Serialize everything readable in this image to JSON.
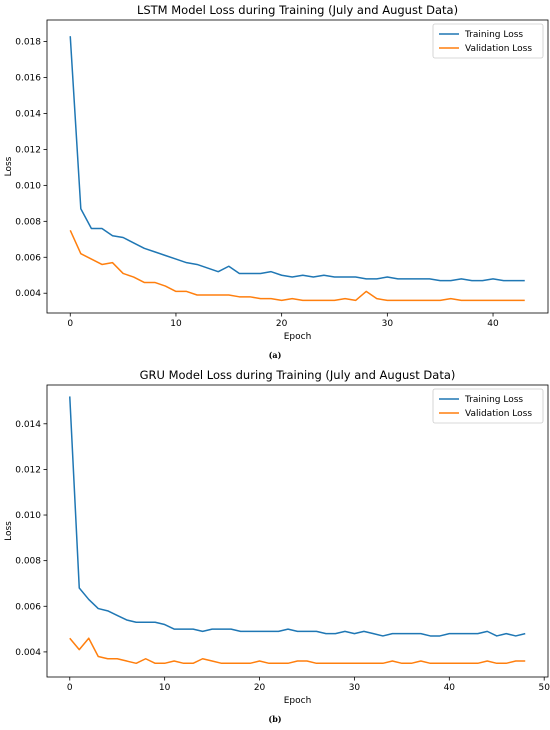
{
  "chart_data": [
    {
      "type": "line",
      "title": "LSTM Model Loss during Training (July and August Data)",
      "xlabel": "Epoch",
      "ylabel": "Loss",
      "caption": "(a)",
      "xlim": [
        -2.2,
        45.2
      ],
      "ylim": [
        0.0029,
        0.0192
      ],
      "xticks": [
        0,
        10,
        20,
        30,
        40
      ],
      "yticks": [
        0.004,
        0.006,
        0.008,
        0.01,
        0.012,
        0.014,
        0.016,
        0.018
      ],
      "ytick_labels": [
        "0.004",
        "0.006",
        "0.008",
        "0.010",
        "0.012",
        "0.014",
        "0.016",
        "0.018"
      ],
      "grid": false,
      "legend": "top-right",
      "series": [
        {
          "name": "Training Loss",
          "color": "#1f77b4",
          "x": [
            0,
            1,
            2,
            3,
            4,
            5,
            6,
            7,
            8,
            9,
            10,
            11,
            12,
            13,
            14,
            15,
            16,
            17,
            18,
            19,
            20,
            21,
            22,
            23,
            24,
            25,
            26,
            27,
            28,
            29,
            30,
            31,
            32,
            33,
            34,
            35,
            36,
            37,
            38,
            39,
            40,
            41,
            42,
            43
          ],
          "values": [
            0.0183,
            0.0087,
            0.0076,
            0.0076,
            0.0072,
            0.0071,
            0.0068,
            0.0065,
            0.0063,
            0.0061,
            0.0059,
            0.0057,
            0.0056,
            0.0054,
            0.0052,
            0.0055,
            0.0051,
            0.0051,
            0.0051,
            0.0052,
            0.005,
            0.0049,
            0.005,
            0.0049,
            0.005,
            0.0049,
            0.0049,
            0.0049,
            0.0048,
            0.0048,
            0.0049,
            0.0048,
            0.0048,
            0.0048,
            0.0048,
            0.0047,
            0.0047,
            0.0048,
            0.0047,
            0.0047,
            0.0048,
            0.0047,
            0.0047,
            0.0047
          ]
        },
        {
          "name": "Validation Loss",
          "color": "#ff7f0e",
          "x": [
            0,
            1,
            2,
            3,
            4,
            5,
            6,
            7,
            8,
            9,
            10,
            11,
            12,
            13,
            14,
            15,
            16,
            17,
            18,
            19,
            20,
            21,
            22,
            23,
            24,
            25,
            26,
            27,
            28,
            29,
            30,
            31,
            32,
            33,
            34,
            35,
            36,
            37,
            38,
            39,
            40,
            41,
            42,
            43
          ],
          "values": [
            0.0075,
            0.0062,
            0.0059,
            0.0056,
            0.0057,
            0.0051,
            0.0049,
            0.0046,
            0.0046,
            0.0044,
            0.0041,
            0.0041,
            0.0039,
            0.0039,
            0.0039,
            0.0039,
            0.0038,
            0.0038,
            0.0037,
            0.0037,
            0.0036,
            0.0037,
            0.0036,
            0.0036,
            0.0036,
            0.0036,
            0.0037,
            0.0036,
            0.0041,
            0.0037,
            0.0036,
            0.0036,
            0.0036,
            0.0036,
            0.0036,
            0.0036,
            0.0037,
            0.0036,
            0.0036,
            0.0036,
            0.0036,
            0.0036,
            0.0036,
            0.0036
          ]
        }
      ]
    },
    {
      "type": "line",
      "title": "GRU Model Loss during Training (July and August Data)",
      "xlabel": "Epoch",
      "ylabel": "Loss",
      "caption": "(b)",
      "xlim": [
        -2.4,
        50.4
      ],
      "ylim": [
        0.0029,
        0.0157
      ],
      "xticks": [
        0,
        10,
        20,
        30,
        40,
        50
      ],
      "yticks": [
        0.004,
        0.006,
        0.008,
        0.01,
        0.012,
        0.014
      ],
      "ytick_labels": [
        "0.004",
        "0.006",
        "0.008",
        "0.010",
        "0.012",
        "0.014"
      ],
      "grid": false,
      "legend": "top-right",
      "series": [
        {
          "name": "Training Loss",
          "color": "#1f77b4",
          "x": [
            0,
            1,
            2,
            3,
            4,
            5,
            6,
            7,
            8,
            9,
            10,
            11,
            12,
            13,
            14,
            15,
            16,
            17,
            18,
            19,
            20,
            21,
            22,
            23,
            24,
            25,
            26,
            27,
            28,
            29,
            30,
            31,
            32,
            33,
            34,
            35,
            36,
            37,
            38,
            39,
            40,
            41,
            42,
            43,
            44,
            45,
            46,
            47,
            48
          ],
          "values": [
            0.0152,
            0.0068,
            0.0063,
            0.0059,
            0.0058,
            0.0056,
            0.0054,
            0.0053,
            0.0053,
            0.0053,
            0.0052,
            0.005,
            0.005,
            0.005,
            0.0049,
            0.005,
            0.005,
            0.005,
            0.0049,
            0.0049,
            0.0049,
            0.0049,
            0.0049,
            0.005,
            0.0049,
            0.0049,
            0.0049,
            0.0048,
            0.0048,
            0.0049,
            0.0048,
            0.0049,
            0.0048,
            0.0047,
            0.0048,
            0.0048,
            0.0048,
            0.0048,
            0.0047,
            0.0047,
            0.0048,
            0.0048,
            0.0048,
            0.0048,
            0.0049,
            0.0047,
            0.0048,
            0.0047,
            0.0048
          ]
        },
        {
          "name": "Validation Loss",
          "color": "#ff7f0e",
          "x": [
            0,
            1,
            2,
            3,
            4,
            5,
            6,
            7,
            8,
            9,
            10,
            11,
            12,
            13,
            14,
            15,
            16,
            17,
            18,
            19,
            20,
            21,
            22,
            23,
            24,
            25,
            26,
            27,
            28,
            29,
            30,
            31,
            32,
            33,
            34,
            35,
            36,
            37,
            38,
            39,
            40,
            41,
            42,
            43,
            44,
            45,
            46,
            47,
            48
          ],
          "values": [
            0.0046,
            0.0041,
            0.0046,
            0.0038,
            0.0037,
            0.0037,
            0.0036,
            0.0035,
            0.0037,
            0.0035,
            0.0035,
            0.0036,
            0.0035,
            0.0035,
            0.0037,
            0.0036,
            0.0035,
            0.0035,
            0.0035,
            0.0035,
            0.0036,
            0.0035,
            0.0035,
            0.0035,
            0.0036,
            0.0036,
            0.0035,
            0.0035,
            0.0035,
            0.0035,
            0.0035,
            0.0035,
            0.0035,
            0.0035,
            0.0036,
            0.0035,
            0.0035,
            0.0036,
            0.0035,
            0.0035,
            0.0035,
            0.0035,
            0.0035,
            0.0035,
            0.0036,
            0.0035,
            0.0035,
            0.0036,
            0.0036
          ]
        }
      ]
    }
  ]
}
